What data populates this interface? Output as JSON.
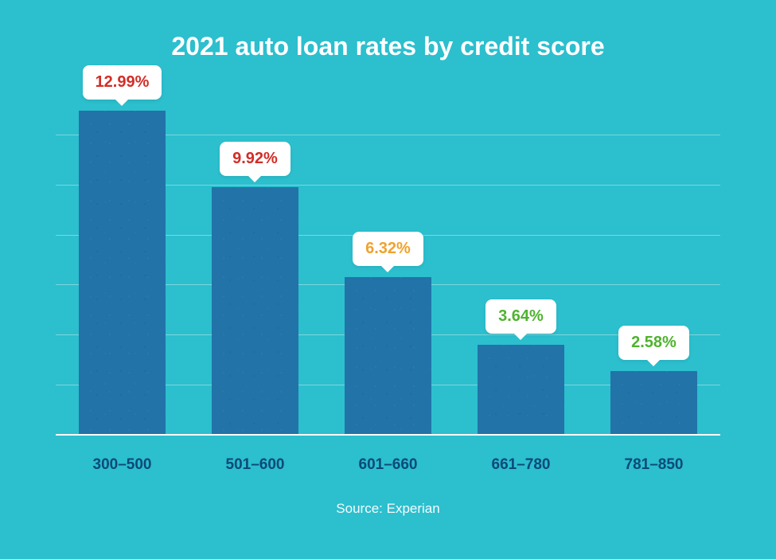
{
  "chart": {
    "type": "bar",
    "title": "2021 auto loan rates by credit score",
    "title_color": "#ffffff",
    "title_fontsize": 32,
    "background_color": "#2cbfce",
    "grid_color": "#7ad7df",
    "baseline_color": "#ffffff",
    "bar_color": "#2173a8",
    "y_max": 14,
    "gridline_step": 2,
    "gridlines": [
      2,
      4,
      6,
      8,
      10,
      12
    ],
    "categories": [
      "300–500",
      "501–600",
      "601–660",
      "661–780",
      "781–850"
    ],
    "x_label_color": "#0b4a7a",
    "x_label_fontsize": 19,
    "values": [
      12.99,
      9.92,
      6.32,
      3.64,
      2.58
    ],
    "value_labels": [
      "12.99%",
      "9.92%",
      "6.32%",
      "3.64%",
      "2.58%"
    ],
    "value_label_colors": [
      "#d32d27",
      "#d32d27",
      "#f0a22e",
      "#4fb32e",
      "#4fb32e"
    ],
    "bubble_bg": "#ffffff",
    "bubble_fontsize": 20,
    "bubble_radius": 8,
    "source_text": "Source: Experian",
    "source_color": "#ffffff"
  }
}
